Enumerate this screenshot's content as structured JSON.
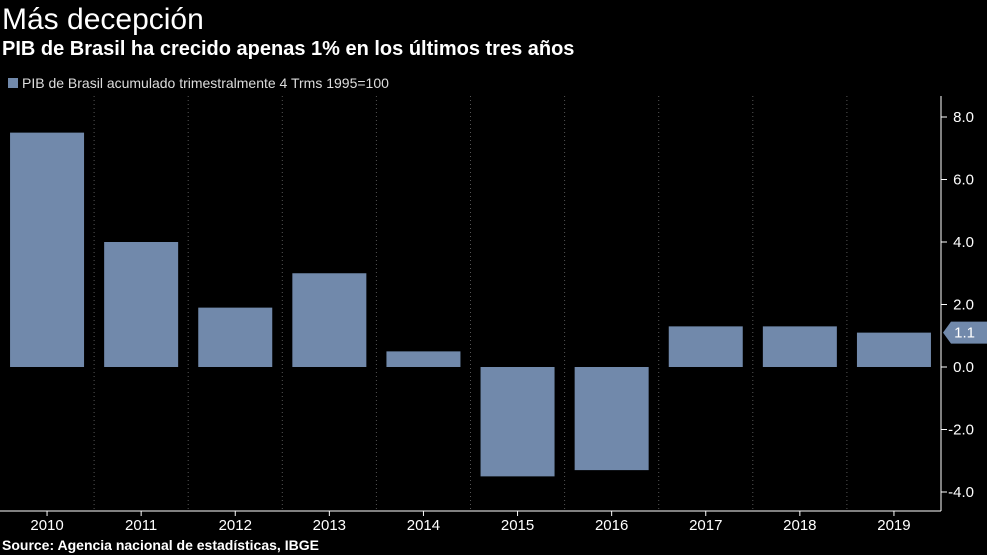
{
  "title": "Más decepción",
  "subtitle": "PIB de Brasil ha crecido apenas 1% en los últimos tres años",
  "source": "Source: Agencia nacional de estadísticas, IBGE",
  "colors": {
    "background": "#000000",
    "bar": "#7189ab",
    "grid": "#555555",
    "axis": "#ffffff",
    "text": "#ffffff"
  },
  "chart_data": {
    "type": "bar",
    "categories": [
      "2010",
      "2011",
      "2012",
      "2013",
      "2014",
      "2015",
      "2016",
      "2017",
      "2018",
      "2019"
    ],
    "series": [
      {
        "name": "PIB de Brasil acumulado trimestralmente 4 Trms 1995=100",
        "values": [
          7.5,
          4.0,
          1.9,
          3.0,
          0.5,
          -3.5,
          -3.3,
          1.3,
          1.3,
          1.1
        ]
      }
    ],
    "ylim": [
      -4.0,
      8.0
    ],
    "yticks": [
      "8.0",
      "6.0",
      "4.0",
      "2.0",
      "0.0",
      "-2.0",
      "-4.0"
    ],
    "ytick_values": [
      8,
      6,
      4,
      2,
      0,
      -2,
      -4
    ],
    "y_axis_side": "right",
    "grid": "vertical dashed",
    "legend_position": "top-left",
    "last_value_label": "1.1",
    "xlabel": "",
    "ylabel": ""
  }
}
